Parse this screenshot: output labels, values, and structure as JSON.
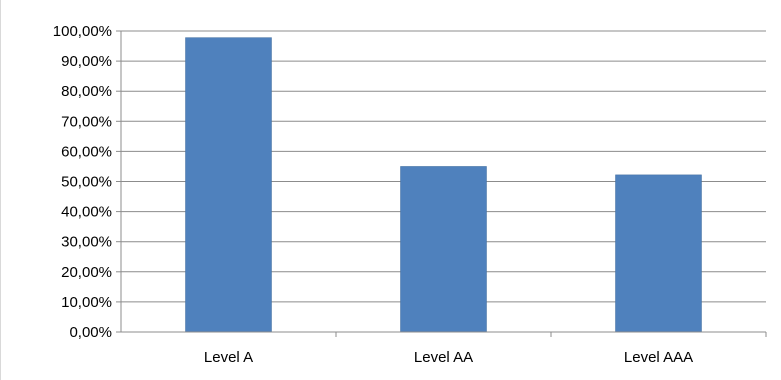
{
  "chart_data": {
    "type": "bar",
    "title": "",
    "xlabel": "",
    "ylabel": "",
    "categories": [
      "Level A",
      "Level AA",
      "Level AAA"
    ],
    "values": [
      97.8,
      55.0,
      52.2
    ],
    "ylim": [
      0,
      100
    ],
    "y_ticks": [
      0,
      10,
      20,
      30,
      40,
      50,
      60,
      70,
      80,
      90,
      100
    ],
    "y_tick_labels": [
      "0,00%",
      "10,00%",
      "20,00%",
      "30,00%",
      "40,00%",
      "50,00%",
      "60,00%",
      "70,00%",
      "80,00%",
      "90,00%",
      "100,00%"
    ],
    "grid": true,
    "legend": "none",
    "colors": {
      "bar": "#4f81bd",
      "bar_edge": "#426e9f",
      "grid": "#8c8c8c",
      "axis": "#8c8c8c"
    }
  }
}
